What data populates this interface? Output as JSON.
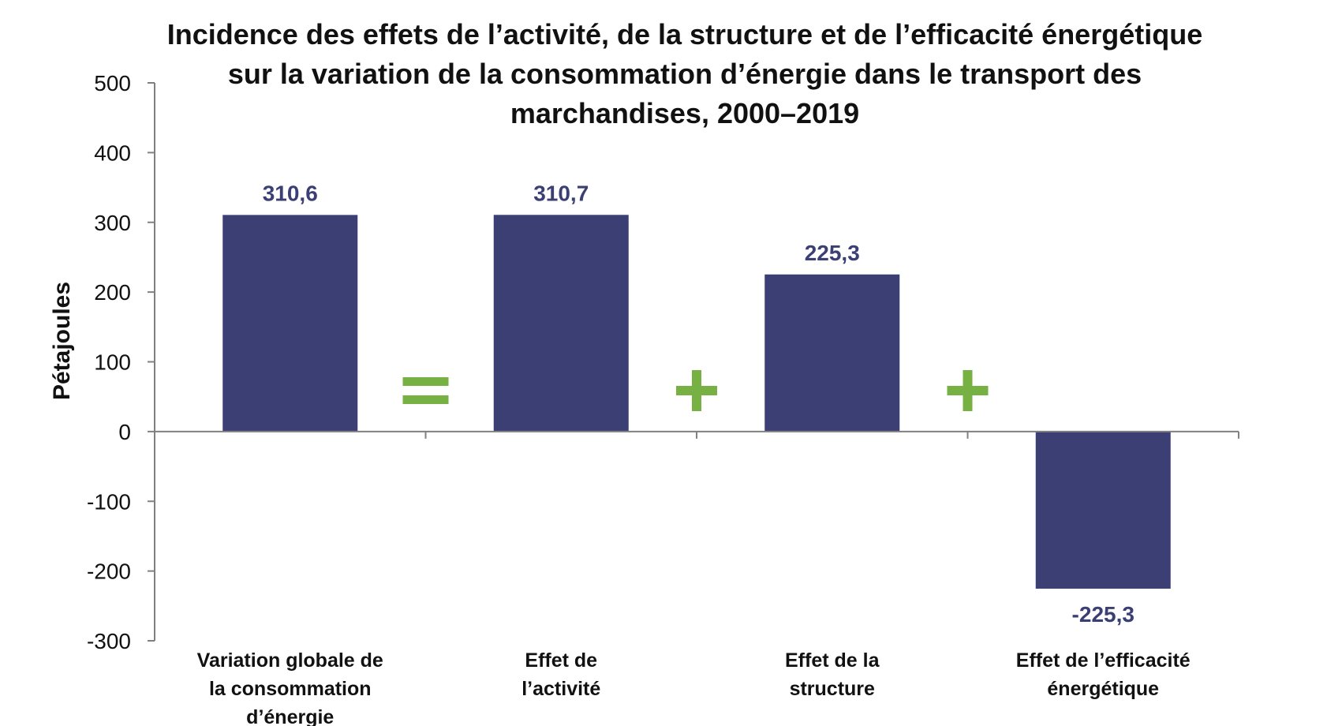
{
  "chart_data": {
    "type": "bar",
    "title_lines": [
      "Incidence des effets de l’activité, de la structure et de l’efficacité énergétique",
      "sur la variation de la consommation d’énergie dans le transport des",
      "marchandises, 2000–2019"
    ],
    "ylabel": "Pétajoules",
    "xlabel": "",
    "ylim": [
      -300,
      500
    ],
    "yticks": [
      500,
      400,
      300,
      200,
      100,
      0,
      -100,
      -200,
      -300
    ],
    "categories": [
      [
        "Variation globale de",
        "la consommation",
        "d’énergie"
      ],
      [
        "Effet de",
        "l’activité"
      ],
      [
        "Effet de la",
        "structure"
      ],
      [
        "Effet de l’efficacité",
        "énergétique"
      ]
    ],
    "values": [
      310.6,
      310.7,
      225.3,
      -225.3
    ],
    "data_labels": [
      "310,6",
      "310,7",
      "225,3",
      "-225,3"
    ],
    "operators": [
      "=",
      "+",
      "+"
    ],
    "bar_color": "#3b3f74",
    "label_color": "#3b3f74",
    "operator_color": "#77b043",
    "grid": false,
    "legend": "none"
  }
}
